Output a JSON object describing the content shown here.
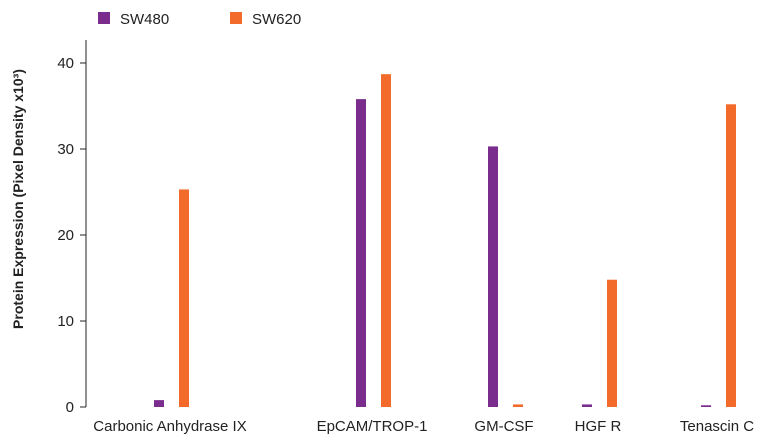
{
  "chart_data": {
    "type": "bar",
    "categories": [
      "Carbonic Anhydrase IX",
      "EpCAM/TROP-1",
      "GM-CSF",
      "HGF R",
      "Tenascin C"
    ],
    "series": [
      {
        "name": "SW480",
        "color": "#7b2d8e",
        "values": [
          0.8,
          35.8,
          30.3,
          0.3,
          0.2
        ]
      },
      {
        "name": "SW620",
        "color": "#f26b2a",
        "values": [
          25.3,
          38.7,
          0.3,
          14.8,
          35.2
        ]
      }
    ],
    "title": "",
    "xlabel": "",
    "ylabel": "Protein Expression (Pixel Density x10³)",
    "ylim": [
      0,
      43
    ],
    "yticks": [
      0,
      10,
      20,
      30,
      40
    ],
    "grid": false,
    "legend_position": "top-left"
  }
}
